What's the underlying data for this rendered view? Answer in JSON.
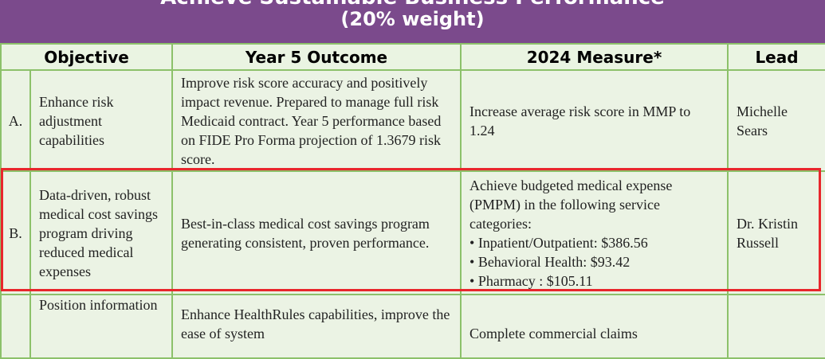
{
  "banner": {
    "title": "Achieve Sustainable Business Performance",
    "subtitle": "(20% weight)"
  },
  "headers": {
    "objective": "Objective",
    "outcome": "Year 5 Outcome",
    "measure": "2024 Measure*",
    "lead": "Lead"
  },
  "rows": [
    {
      "letter": "A.",
      "objective": "Enhance risk adjustment capabilities",
      "outcome": "Improve risk score accuracy and positively impact revenue. Prepared to manage full risk Medicaid contract. Year 5 performance based on FIDE Pro Forma projection of 1.3679 risk score.",
      "measure": "Increase average risk score in MMP to 1.24",
      "lead": "Michelle Sears"
    },
    {
      "letter": "B.",
      "objective": "Data-driven, robust medical cost savings program driving reduced medical expenses",
      "outcome": "Best-in-class medical cost savings program generating consistent, proven performance.",
      "measure_intro": "Achieve budgeted medical expense (PMPM) in the following service categories:",
      "measure_items": [
        "Inpatient/Outpatient: $386.56",
        "Behavioral Health: $93.42",
        "Pharmacy : $105.11"
      ],
      "lead": "Dr. Kristin Russell"
    },
    {
      "letter": "",
      "objective": "Position information",
      "outcome": "Enhance HealthRules capabilities, improve the ease of system",
      "measure": "Complete commercial claims",
      "lead": ""
    }
  ]
}
